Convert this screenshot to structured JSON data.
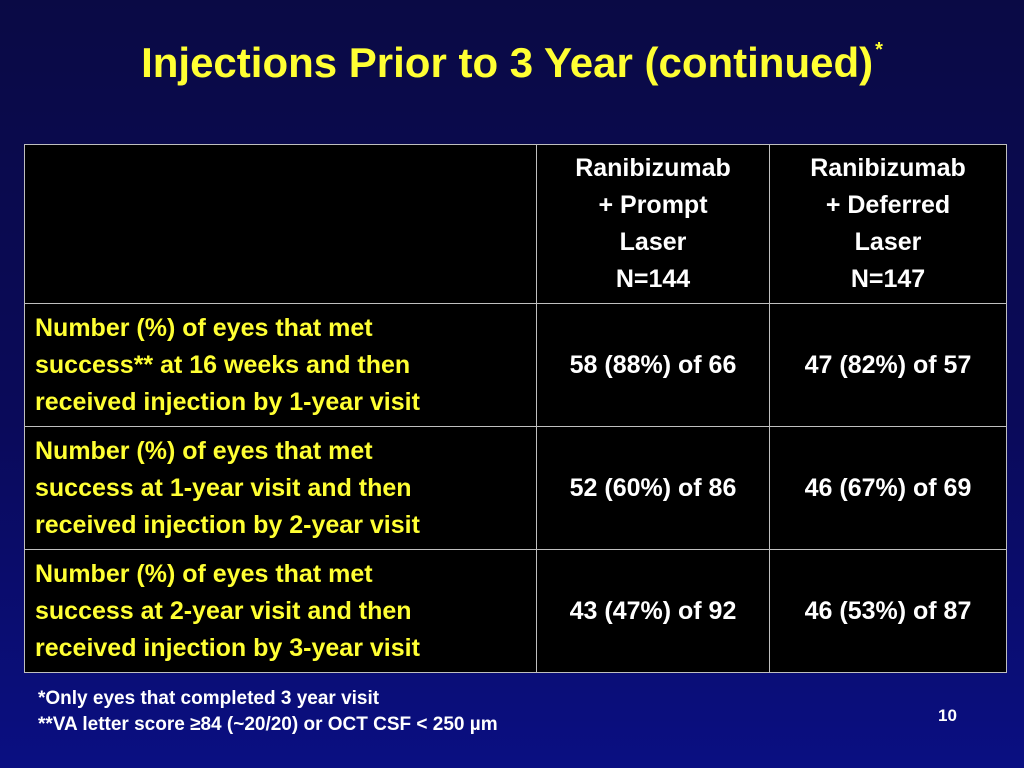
{
  "slide": {
    "title": "Injections Prior to 3 Year (continued)",
    "title_marker": "*",
    "page_number": "10"
  },
  "table": {
    "header_blank": "",
    "columns": [
      {
        "lines": [
          "Ranibizumab",
          "+ Prompt",
          "Laser",
          "N=144"
        ]
      },
      {
        "lines": [
          "Ranibizumab",
          "+ Deferred",
          "Laser",
          "N=147"
        ]
      }
    ],
    "rows": [
      {
        "label_lines": [
          "Number (%) of eyes that met",
          "success** at 16 weeks and then",
          "received injection by 1-year visit"
        ],
        "values": [
          "58 (88%) of 66",
          "47 (82%) of 57"
        ]
      },
      {
        "label_lines": [
          "Number (%) of eyes that met",
          "success at 1-year visit and then",
          "received injection by 2-year visit"
        ],
        "values": [
          "52 (60%) of 86",
          "46 (67%) of 69"
        ]
      },
      {
        "label_lines": [
          "Number (%) of eyes that met",
          "success at 2-year visit and then",
          "received injection by 3-year visit"
        ],
        "values": [
          "43 (47%) of 92",
          "46 (53%) of 87"
        ]
      }
    ]
  },
  "footnotes": [
    "*Only eyes that completed 3 year visit",
    "**VA letter score ≥84 (~20/20) or OCT CSF < 250 µm"
  ],
  "colors": {
    "background": "#0a0a5a",
    "title": "#ffff33",
    "row_label": "#ffff33",
    "cell_text": "#ffffff",
    "table_background": "#000000",
    "grid_lines": "#bfbfbf"
  }
}
